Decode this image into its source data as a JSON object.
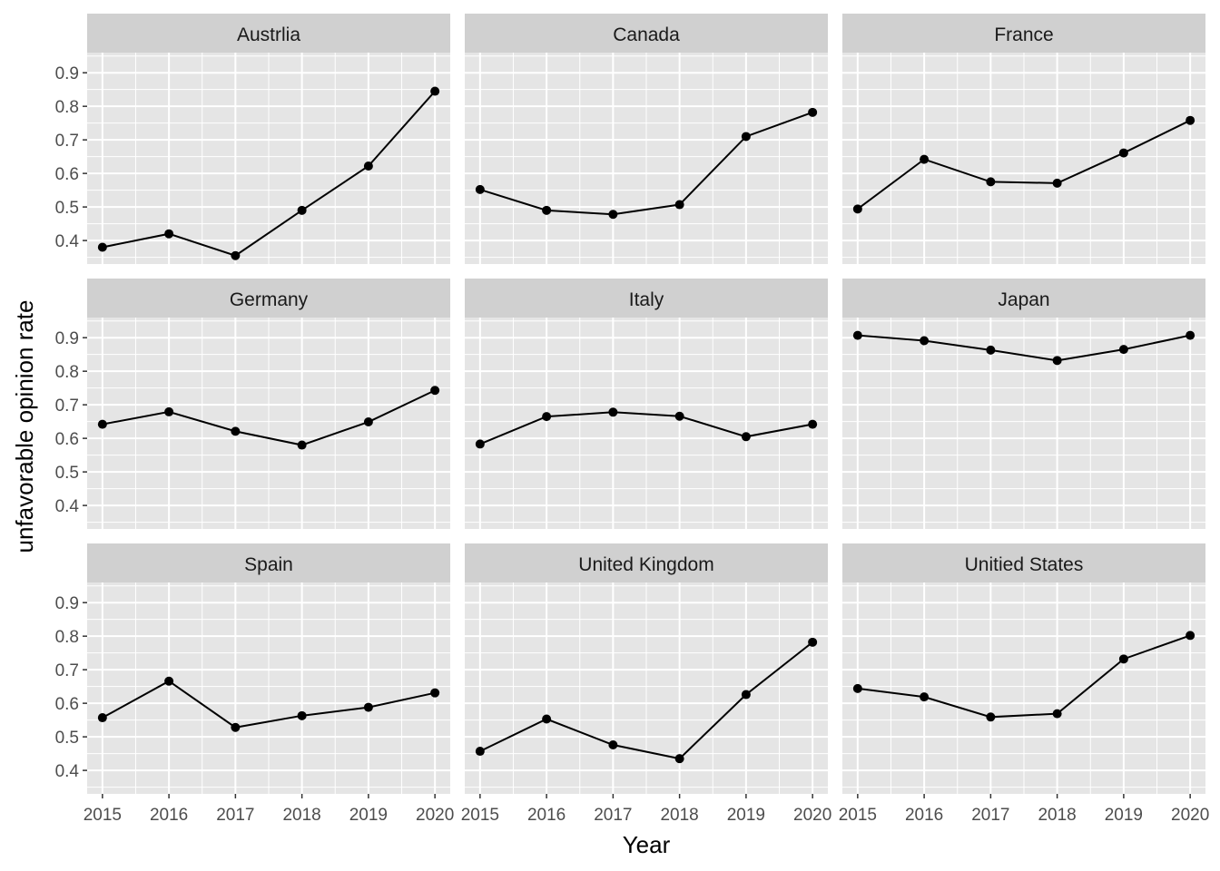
{
  "chart_data": {
    "type": "line",
    "facet_layout": "3x3",
    "xlabel": "Year",
    "ylabel": "unfavorable opinion rate",
    "x": [
      2015,
      2016,
      2017,
      2018,
      2019,
      2020
    ],
    "x_ticks": [
      "2015",
      "2016",
      "2017",
      "2018",
      "2019",
      "2020"
    ],
    "y_ticks": [
      "0.4",
      "0.5",
      "0.6",
      "0.7",
      "0.8",
      "0.9"
    ],
    "ylim": [
      0.33,
      0.96
    ],
    "xlim": [
      2014.77,
      2020.23
    ],
    "grid": true,
    "colors": {
      "panel_bg": "#e5e5e5",
      "strip_bg": "#d0d0d0",
      "grid_major": "#ffffff",
      "line": "#000000",
      "point": "#000000"
    },
    "facets": [
      {
        "name": "Austrlia",
        "values": [
          0.38,
          0.42,
          0.355,
          0.49,
          0.622,
          0.845
        ]
      },
      {
        "name": "Canada",
        "values": [
          0.552,
          0.49,
          0.478,
          0.507,
          0.71,
          0.782
        ]
      },
      {
        "name": "France",
        "values": [
          0.494,
          0.642,
          0.575,
          0.571,
          0.661,
          0.758
        ]
      },
      {
        "name": "Germany",
        "values": [
          0.642,
          0.679,
          0.621,
          0.58,
          0.649,
          0.743
        ]
      },
      {
        "name": "Italy",
        "values": [
          0.583,
          0.665,
          0.678,
          0.666,
          0.605,
          0.642
        ]
      },
      {
        "name": "Japan",
        "values": [
          0.907,
          0.891,
          0.863,
          0.832,
          0.865,
          0.907
        ]
      },
      {
        "name": "Spain",
        "values": [
          0.557,
          0.666,
          0.528,
          0.563,
          0.588,
          0.631
        ]
      },
      {
        "name": "United Kingdom",
        "values": [
          0.457,
          0.553,
          0.476,
          0.435,
          0.626,
          0.782
        ]
      },
      {
        "name": "Unitied States",
        "values": [
          0.644,
          0.619,
          0.559,
          0.569,
          0.732,
          0.802
        ]
      }
    ]
  }
}
